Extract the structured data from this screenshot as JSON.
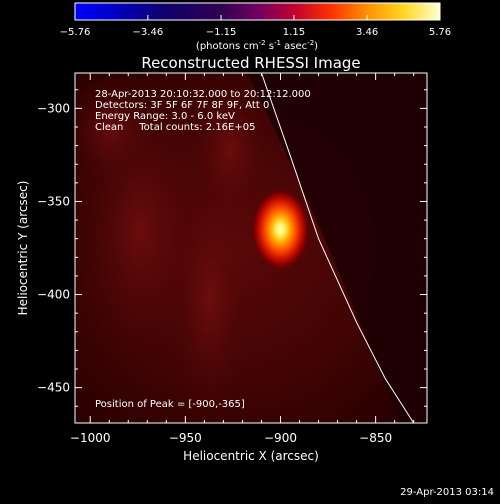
{
  "colorbar": {
    "tick_labels": [
      "-5.76",
      "-3.46",
      "-1.15",
      "1.15",
      "3.46",
      "5.76"
    ],
    "range": [
      -5.76,
      5.76
    ],
    "units": "(photons cm",
    "units_exp1": "-2",
    "units_mid": " s",
    "units_exp2": "-1",
    "units_end": " asec",
    "units_exp3": "-2",
    "units_close": ")"
  },
  "chart_data": {
    "type": "heatmap",
    "title": "Reconstructed RHESSI Image",
    "xlabel": "Heliocentric X (arcsec)",
    "ylabel": "Heliocentric Y (arcsec)",
    "xlim": [
      -1008,
      -823
    ],
    "ylim": [
      -469,
      -281
    ],
    "x_ticks": [
      -1000,
      -950,
      -900,
      -850
    ],
    "y_ticks": [
      -300,
      -350,
      -400,
      -450
    ],
    "x_tick_labels": [
      "−1000",
      "−950",
      "−900",
      "−850"
    ],
    "y_tick_labels": [
      "−300",
      "−350",
      "−400",
      "−450"
    ],
    "peak": {
      "x": -900,
      "y": -365
    },
    "limb_curve": [
      [
        -910,
        -281
      ],
      [
        -895,
        -325
      ],
      [
        -880,
        -370
      ],
      [
        -860,
        -415
      ],
      [
        -845,
        -445
      ],
      [
        -830,
        -469
      ]
    ],
    "annotations": [
      "28-Apr-2013 20:10:32.000 to 20:12:12.000",
      "Detectors: 3F 5F 6F 7F 8F 9F, Att 0",
      "Energy Range: 3.0 - 6.0 keV",
      "Clean     Total counts: 2.16E+05"
    ],
    "peak_label": "Position of Peak = [-900,-365]",
    "colors": {
      "background": "#000000",
      "emission_low": "#3a0000",
      "emission_mid": "#a00000",
      "emission_high": "#ffff99",
      "limb_line": "#ffffff"
    }
  },
  "timestamp": "29-Apr-2013 03:14"
}
